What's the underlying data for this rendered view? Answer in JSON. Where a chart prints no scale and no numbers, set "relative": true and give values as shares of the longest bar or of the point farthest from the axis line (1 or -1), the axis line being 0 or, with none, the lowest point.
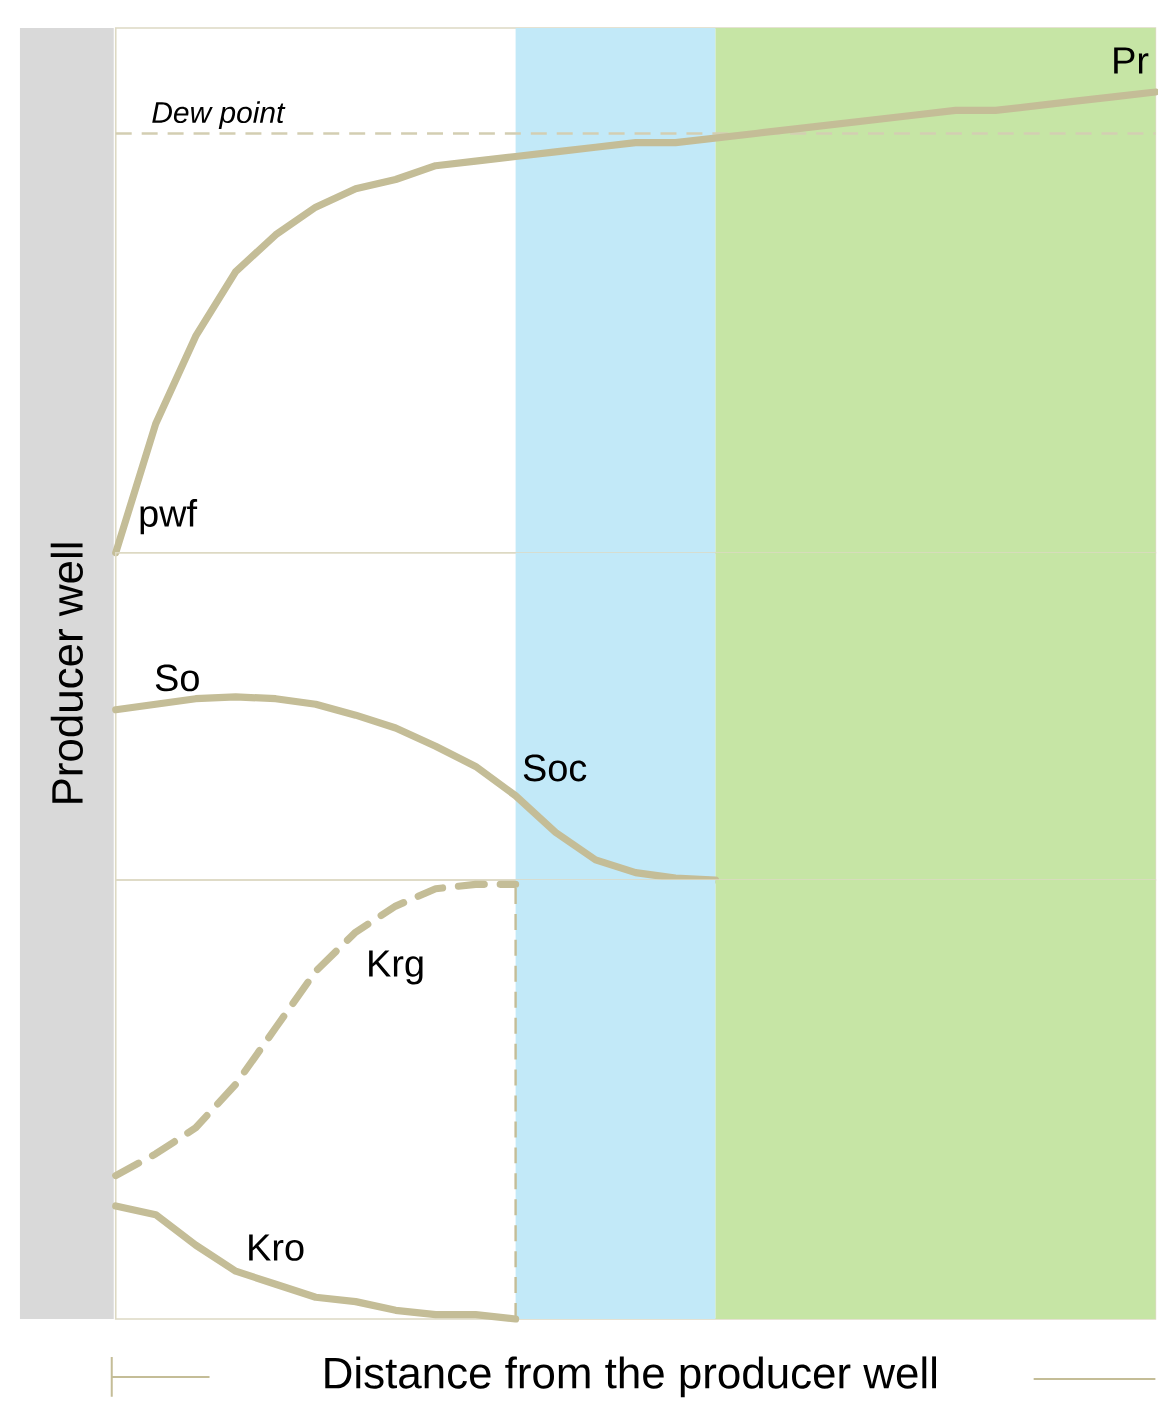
{
  "chart_data": [
    {
      "type": "line",
      "relative": true,
      "categories": [
        null,
        null,
        null,
        null,
        null,
        null,
        null,
        null,
        null,
        null,
        null,
        null,
        null,
        null,
        null,
        null,
        null,
        null,
        null,
        null,
        null,
        null,
        null,
        null,
        null,
        null,
        null
      ],
      "series": [
        {
          "color": "#c4bd97",
          "values": [
            0,
            0.28,
            0.47,
            0.61,
            0.69,
            0.75,
            0.79,
            0.81,
            0.84,
            0.85,
            0.86,
            0.87,
            0.88,
            0.89,
            0.89,
            0.9,
            0.91,
            0.92,
            0.93,
            0.94,
            0.95,
            0.96,
            0.96,
            0.97,
            0.98,
            0.99,
            1
          ]
        }
      ],
      "ref_lines": [
        {
          "axis": "y",
          "value": 0.91,
          "label": "Dew point",
          "color": "#d3ceb2",
          "line_style": "dashed"
        }
      ],
      "annotations": [
        "pwf",
        "Pr"
      ]
    },
    {
      "type": "line",
      "relative": true,
      "ylabel": "Producer well",
      "categories": [
        null,
        null,
        null,
        null,
        null,
        null,
        null,
        null,
        null,
        null,
        null,
        null,
        null,
        null,
        null,
        null,
        null,
        null,
        null,
        null,
        null,
        null,
        null,
        null,
        null,
        null,
        null
      ],
      "series": [
        {
          "color": "#c4bd97",
          "values": [
            0.93,
            0.96,
            0.99,
            1,
            0.99,
            0.96,
            0.9,
            0.83,
            0.73,
            0.62,
            0.46,
            0.26,
            0.11,
            0.04,
            0.01,
            0,
            null,
            null,
            null,
            null,
            null,
            null,
            null,
            null,
            null,
            null,
            null
          ]
        }
      ],
      "annotations": [
        "So",
        "Soc"
      ]
    },
    {
      "type": "line",
      "relative": true,
      "xlabel": "Distance from the producer well",
      "categories": [
        null,
        null,
        null,
        null,
        null,
        null,
        null,
        null,
        null,
        null,
        null,
        null,
        null,
        null,
        null,
        null,
        null,
        null,
        null,
        null,
        null,
        null,
        null,
        null,
        null,
        null,
        null
      ],
      "series": [
        {
          "color": "#c4bd97",
          "line_style": "dashed",
          "values": [
            0.33,
            0.38,
            0.44,
            0.54,
            0.67,
            0.8,
            0.89,
            0.95,
            0.99,
            1,
            1,
            null,
            null,
            null,
            null,
            null,
            null,
            null,
            null,
            null,
            null,
            null,
            null,
            null,
            null,
            null,
            null
          ]
        },
        {
          "color": "#c4bd97",
          "values": [
            0.26,
            0.24,
            0.17,
            0.11,
            0.08,
            0.05,
            0.04,
            0.02,
            0.01,
            0.01,
            0,
            null,
            null,
            null,
            null,
            null,
            null,
            null,
            null,
            null,
            null,
            null,
            null,
            null,
            null,
            null,
            null
          ]
        }
      ],
      "annotations": [
        "Krg",
        "Kro"
      ]
    }
  ]
}
